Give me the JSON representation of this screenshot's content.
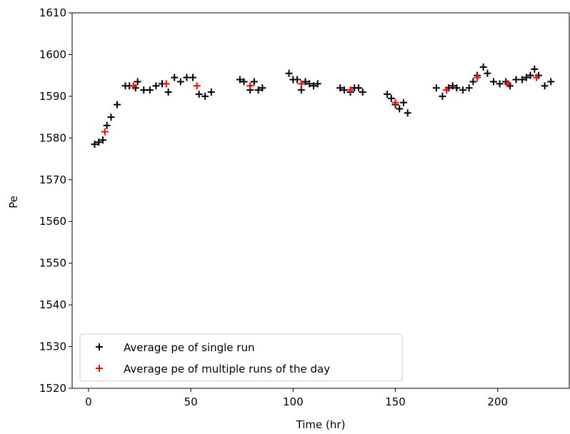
{
  "chart_data": {
    "type": "scatter",
    "title": "",
    "xlabel": "Time (hr)",
    "ylabel": "Pe",
    "xlim": [
      -8,
      235
    ],
    "ylim": [
      1520,
      1610
    ],
    "xticks": [
      "0",
      "50",
      "100",
      "150",
      "200"
    ],
    "xtick_values": [
      0,
      50,
      100,
      150,
      200
    ],
    "yticks": [
      "1520",
      "1530",
      "1540",
      "1550",
      "1560",
      "1570",
      "1580",
      "1590",
      "1600",
      "1610"
    ],
    "ytick_values": [
      1520,
      1530,
      1540,
      1550,
      1560,
      1570,
      1580,
      1590,
      1600,
      1610
    ],
    "grid": false,
    "legend_position": "lower-left",
    "series": [
      {
        "name": "Average pe of single run",
        "color": "#000000",
        "marker": "plus",
        "points": [
          [
            3,
            1578.5
          ],
          [
            5,
            1579
          ],
          [
            7,
            1579.5
          ],
          [
            9,
            1583
          ],
          [
            11,
            1585
          ],
          [
            14,
            1588
          ],
          [
            18,
            1592.5
          ],
          [
            20,
            1592.5
          ],
          [
            23,
            1592
          ],
          [
            24,
            1593.5
          ],
          [
            27,
            1591.5
          ],
          [
            30,
            1591.5
          ],
          [
            33,
            1592.5
          ],
          [
            36,
            1593
          ],
          [
            39,
            1591
          ],
          [
            42,
            1594.5
          ],
          [
            45,
            1593.5
          ],
          [
            48,
            1594.5
          ],
          [
            51,
            1594.5
          ],
          [
            54,
            1590.5
          ],
          [
            57,
            1590
          ],
          [
            60,
            1591
          ],
          [
            74,
            1594
          ],
          [
            76,
            1593.5
          ],
          [
            79,
            1591.5
          ],
          [
            81,
            1593.5
          ],
          [
            83,
            1591.5
          ],
          [
            85,
            1592
          ],
          [
            98,
            1595.5
          ],
          [
            100,
            1594
          ],
          [
            102,
            1594
          ],
          [
            104,
            1591.5
          ],
          [
            106,
            1593.5
          ],
          [
            108,
            1593
          ],
          [
            110,
            1592.5
          ],
          [
            112,
            1593
          ],
          [
            123,
            1592
          ],
          [
            125,
            1591.5
          ],
          [
            128,
            1591
          ],
          [
            130,
            1592
          ],
          [
            132,
            1592
          ],
          [
            134,
            1591
          ],
          [
            146,
            1590.5
          ],
          [
            148,
            1589.5
          ],
          [
            150,
            1588
          ],
          [
            152,
            1587
          ],
          [
            154,
            1588.5
          ],
          [
            156,
            1586
          ],
          [
            170,
            1592
          ],
          [
            173,
            1590
          ],
          [
            176,
            1592
          ],
          [
            178,
            1592.5
          ],
          [
            180,
            1592
          ],
          [
            183,
            1591.5
          ],
          [
            186,
            1592
          ],
          [
            188,
            1593.5
          ],
          [
            190,
            1595
          ],
          [
            193,
            1597
          ],
          [
            195,
            1595.5
          ],
          [
            198,
            1593.5
          ],
          [
            201,
            1593
          ],
          [
            204,
            1593.5
          ],
          [
            206,
            1592.5
          ],
          [
            209,
            1594
          ],
          [
            212,
            1594
          ],
          [
            214,
            1594.5
          ],
          [
            216,
            1595
          ],
          [
            218,
            1596.5
          ],
          [
            220,
            1595
          ],
          [
            223,
            1592.5
          ],
          [
            226,
            1593.5
          ]
        ]
      },
      {
        "name": "Average pe of multiple runs of the day",
        "color": "#ff0000",
        "marker": "plus",
        "points": [
          [
            8,
            1581.5
          ],
          [
            22,
            1592.5
          ],
          [
            38,
            1593
          ],
          [
            53,
            1592.5
          ],
          [
            79,
            1592.5
          ],
          [
            104,
            1593
          ],
          [
            128,
            1591.5
          ],
          [
            150,
            1588.5
          ],
          [
            175,
            1591.5
          ],
          [
            190,
            1594.5
          ],
          [
            205,
            1593
          ],
          [
            219,
            1594.5
          ]
        ]
      }
    ]
  }
}
